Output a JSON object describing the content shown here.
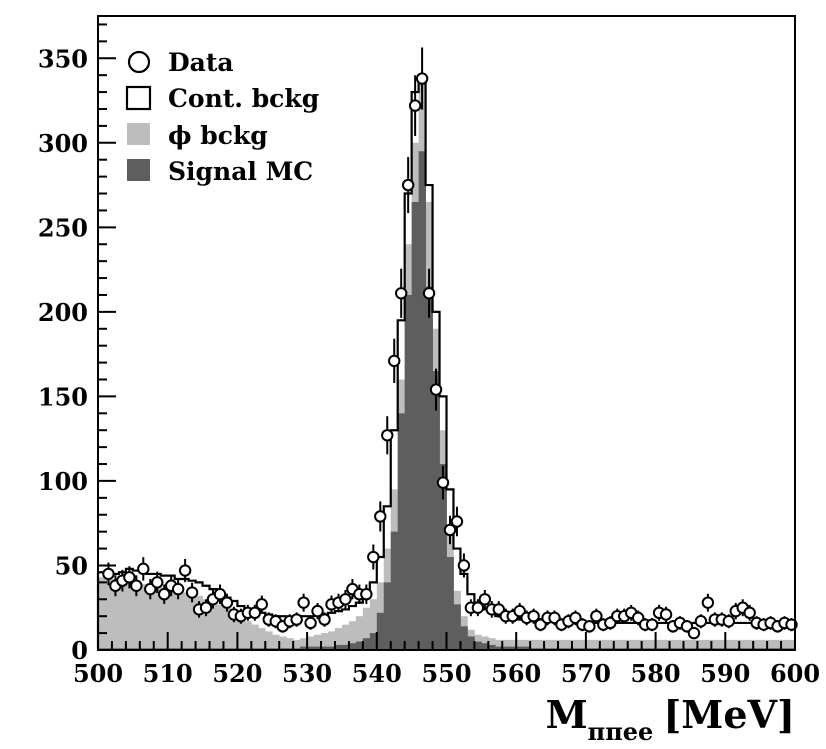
{
  "chart_data": {
    "type": "bar",
    "title": "",
    "xlabel_main": "M",
    "xlabel_sub": "ππee",
    "xlabel_unit": "[MeV]",
    "ylabel": "",
    "xlim": [
      500,
      600
    ],
    "ylim": [
      0,
      375
    ],
    "bin_width": 1,
    "x_ticks": [
      "500",
      "510",
      "520",
      "530",
      "540",
      "550",
      "560",
      "570",
      "580",
      "590",
      "600"
    ],
    "y_ticks": [
      "0",
      "50",
      "100",
      "150",
      "200",
      "250",
      "300",
      "350"
    ],
    "colors": {
      "signal": "#5e5e5e",
      "phi": "#bdbdbd",
      "cont": "#000000",
      "data": "#000000"
    },
    "legend": [
      {
        "label": "Data",
        "icon": "open-circle-marker"
      },
      {
        "label": "Cont. bckg",
        "icon": "open-square-marker"
      },
      {
        "label": "ϕ bckg",
        "icon": "light-gray-filled-square"
      },
      {
        "label": "Signal MC",
        "icon": "dark-gray-filled-square"
      }
    ],
    "series": [
      {
        "name": "Signal MC",
        "values": [
          1,
          1,
          1,
          1,
          1,
          1,
          1,
          1,
          1,
          1,
          1,
          1,
          1,
          1,
          1,
          1,
          1,
          1,
          1,
          1,
          1,
          1,
          1,
          1,
          1,
          1,
          1,
          1,
          1,
          2,
          2,
          2,
          2,
          2,
          3,
          3,
          4,
          5,
          7,
          10,
          22,
          40,
          70,
          140,
          210,
          265,
          295,
          215,
          165,
          110,
          55,
          27,
          14,
          8,
          5,
          4,
          3,
          2,
          2,
          2,
          2,
          2,
          1,
          1,
          1,
          1,
          1,
          1,
          1,
          1,
          1,
          1,
          1,
          1,
          1,
          1,
          1,
          1,
          1,
          1,
          1,
          1,
          1,
          1,
          1,
          1,
          1,
          1,
          1,
          1,
          1,
          1,
          1,
          1,
          1,
          1,
          1,
          1,
          1,
          1
        ]
      },
      {
        "name": "ϕ bckg",
        "values": [
          43,
          42,
          42,
          41,
          40,
          40,
          39,
          38,
          38,
          37,
          36,
          36,
          34,
          33,
          32,
          30,
          28,
          27,
          25,
          22,
          19,
          17,
          15,
          13,
          11,
          9,
          8,
          7,
          6,
          7,
          8,
          9,
          10,
          11,
          13,
          15,
          17,
          20,
          25,
          30,
          40,
          60,
          95,
          160,
          240,
          300,
          335,
          265,
          190,
          130,
          70,
          35,
          20,
          12,
          9,
          8,
          7,
          6,
          6,
          6,
          6,
          6,
          6,
          6,
          6,
          6,
          6,
          6,
          6,
          6,
          6,
          6,
          6,
          6,
          6,
          6,
          6,
          6,
          6,
          6,
          6,
          6,
          6,
          6,
          6,
          6,
          6,
          6,
          6,
          6,
          6,
          6,
          6,
          6,
          6,
          6,
          6,
          6,
          6,
          6
        ]
      },
      {
        "name": "Cont. bckg",
        "values": [
          46,
          45,
          45,
          46,
          48,
          47,
          46,
          45,
          45,
          44,
          44,
          42,
          42,
          41,
          40,
          38,
          36,
          33,
          31,
          29,
          26,
          24,
          22,
          22,
          21,
          20,
          20,
          19,
          20,
          20,
          20,
          21,
          21,
          22,
          23,
          24,
          26,
          28,
          32,
          40,
          55,
          85,
          130,
          195,
          270,
          330,
          340,
          275,
          200,
          150,
          95,
          60,
          45,
          33,
          28,
          24,
          22,
          20,
          20,
          19,
          18,
          18,
          18,
          17,
          17,
          17,
          17,
          16,
          16,
          16,
          16,
          16,
          16,
          16,
          16,
          16,
          16,
          16,
          16,
          16,
          16,
          16,
          16,
          16,
          16,
          16,
          16,
          16,
          16,
          16,
          16,
          16,
          16,
          16,
          16,
          16,
          16,
          16,
          16,
          16
        ]
      }
    ],
    "data_points": {
      "name": "Data",
      "x": [
        501.5,
        502.5,
        503.5,
        504.5,
        505.5,
        506.5,
        507.5,
        508.5,
        509.5,
        510.5,
        511.5,
        512.5,
        513.5,
        514.5,
        515.5,
        516.5,
        517.5,
        518.5,
        519.5,
        520.5,
        521.5,
        522.5,
        523.5,
        524.5,
        525.5,
        526.5,
        527.5,
        528.5,
        529.5,
        530.5,
        531.5,
        532.5,
        533.5,
        534.5,
        535.5,
        536.5,
        537.5,
        538.5,
        539.5,
        540.5,
        541.5,
        542.5,
        543.5,
        544.5,
        545.5,
        546.5,
        547.5,
        548.5,
        549.5,
        550.5,
        551.5,
        552.5,
        553.5,
        554.5,
        555.5,
        556.5,
        557.5,
        558.5,
        559.5,
        560.5,
        561.5,
        562.5,
        563.5,
        564.5,
        565.5,
        566.5,
        567.5,
        568.5,
        569.5,
        570.5,
        571.5,
        572.5,
        573.5,
        574.5,
        575.5,
        576.5,
        577.5,
        578.5,
        579.5,
        580.5,
        581.5,
        582.5,
        583.5,
        584.5,
        585.5,
        586.5,
        587.5,
        588.5,
        589.5,
        590.5,
        591.5,
        592.5,
        593.5,
        594.5,
        595.5,
        596.5,
        597.5,
        598.5,
        599.5
      ],
      "y": [
        45,
        38,
        41,
        43,
        38,
        48,
        36,
        40,
        33,
        38,
        36,
        47,
        34,
        24,
        25,
        30,
        33,
        28,
        21,
        20,
        22,
        22,
        27,
        18,
        17,
        14,
        17,
        18,
        28,
        16,
        23,
        18,
        27,
        28,
        30,
        36,
        33,
        33,
        55,
        79,
        127,
        171,
        211,
        275,
        322,
        338,
        211,
        154,
        99,
        71,
        76,
        50,
        25,
        25,
        30,
        24,
        24,
        20,
        20,
        23,
        19,
        20,
        15,
        19,
        19,
        15,
        17,
        19,
        15,
        14,
        20,
        15,
        16,
        20,
        20,
        22,
        19,
        15,
        15,
        22,
        21,
        14,
        16,
        14,
        10,
        17,
        28,
        18,
        18,
        17,
        23,
        25,
        22,
        16,
        15,
        16,
        14,
        16,
        15
      ]
    }
  }
}
